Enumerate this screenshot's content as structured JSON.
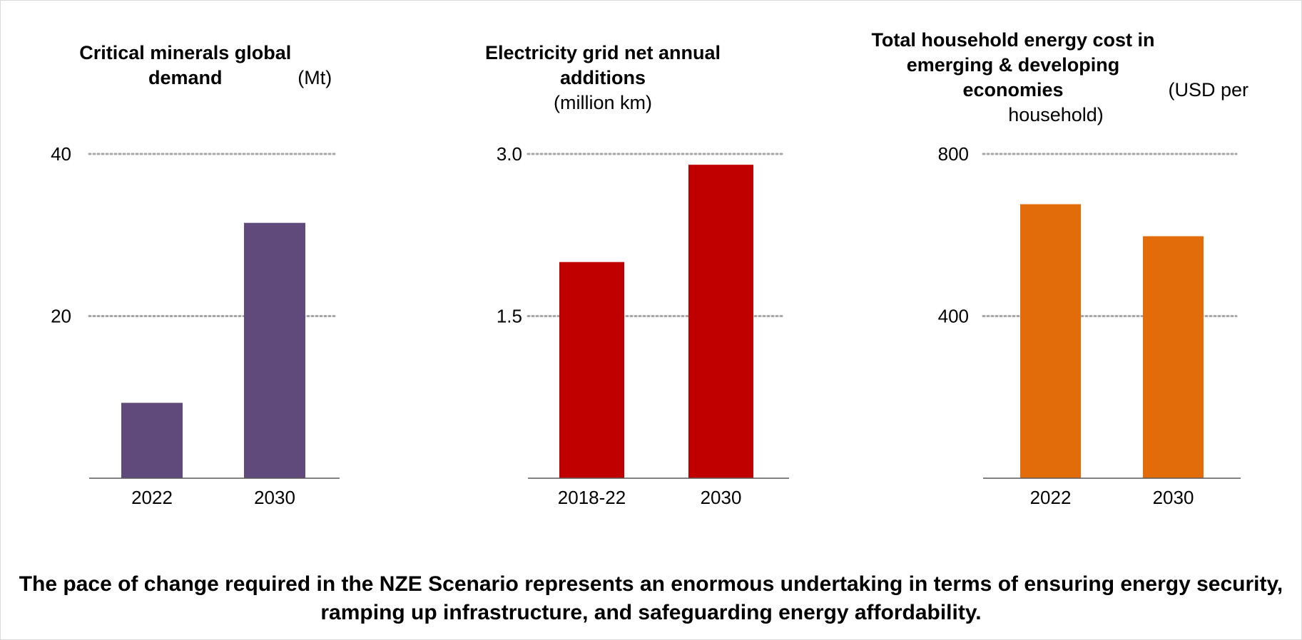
{
  "chart_data": [
    {
      "type": "bar",
      "title": "Critical minerals global demand",
      "unit": "(Mt)",
      "categories": [
        "2022",
        "2030"
      ],
      "values": [
        9.3,
        31.5
      ],
      "ylim": [
        0,
        40
      ],
      "yticks": [
        {
          "value": 20,
          "label": "20"
        },
        {
          "value": 40,
          "label": "40"
        }
      ],
      "grid": true,
      "color": "#604A7B"
    },
    {
      "type": "bar",
      "title": "Electricity grid net annual additions",
      "unit": "(million km)",
      "categories": [
        "2018-22",
        "2030"
      ],
      "values": [
        2.0,
        2.9
      ],
      "ylim": [
        0,
        3.0
      ],
      "yticks": [
        {
          "value": 1.5,
          "label": "1.5"
        },
        {
          "value": 3.0,
          "label": "3.0"
        }
      ],
      "grid": true,
      "color": "#C00000"
    },
    {
      "type": "bar",
      "title": "Total household energy cost in emerging & developing economies",
      "unit": "(USD per household)",
      "categories": [
        "2022",
        "2030"
      ],
      "values": [
        676,
        597
      ],
      "ylim": [
        0,
        800
      ],
      "yticks": [
        {
          "value": 400,
          "label": "400"
        },
        {
          "value": 800,
          "label": "800"
        }
      ],
      "grid": true,
      "color": "#E36C0A"
    }
  ],
  "caption": "The pace of change required in the NZE Scenario represents an enormous undertaking in terms of ensuring energy security, ramping up infrastructure, and safeguarding energy affordability."
}
